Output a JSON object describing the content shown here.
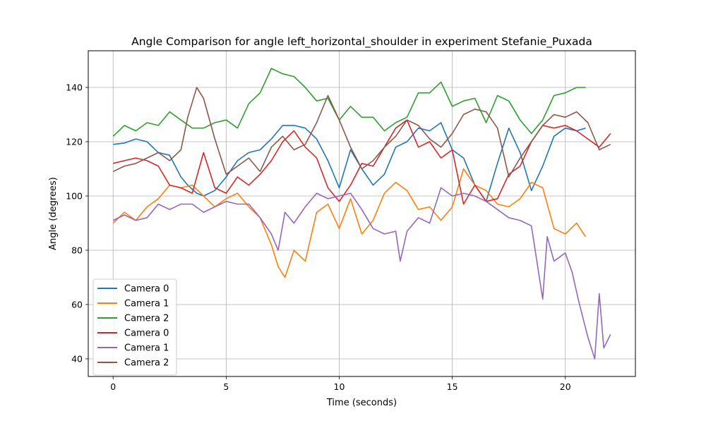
{
  "chart_data": {
    "type": "line",
    "title": "Angle Comparison for angle left_horizontal_shoulder in experiment Stefanie_Puxada",
    "xlabel": "Time (seconds)",
    "ylabel": "Angle (degrees)",
    "xlim": [
      -1.1,
      23.1
    ],
    "ylim": [
      33.5,
      153.5
    ],
    "xticks": [
      0,
      5,
      10,
      15,
      20
    ],
    "yticks": [
      40,
      60,
      80,
      100,
      120,
      140
    ],
    "grid": true,
    "legend": "lower-left",
    "series": [
      {
        "name": "Camera 0",
        "color": "#1f77b4",
        "x": [
          0,
          0.5,
          1,
          1.5,
          2,
          2.5,
          3,
          3.3,
          3.7,
          4,
          4.5,
          5,
          5.5,
          6,
          6.5,
          7,
          7.5,
          8,
          8.5,
          9,
          9.5,
          10,
          10.5,
          11,
          11.5,
          12,
          12.5,
          13,
          13.5,
          14,
          14.5,
          15,
          15.5,
          16,
          16.5,
          17,
          17.5,
          18,
          18.5,
          19,
          19.5,
          20,
          20.5,
          20.9
        ],
        "y": [
          119,
          119.5,
          121,
          120,
          116,
          115,
          107,
          104,
          101,
          100,
          102,
          107,
          113,
          116,
          117,
          121,
          126,
          126,
          125,
          121,
          113,
          103,
          117,
          110,
          104,
          108,
          118,
          120,
          125,
          124,
          127,
          117,
          114,
          104,
          98,
          112,
          125,
          116,
          102,
          111,
          122,
          125,
          124,
          125
        ]
      },
      {
        "name": "Camera 1",
        "color": "#ff7f0e",
        "x": [
          0,
          0.5,
          1,
          1.5,
          2,
          2.5,
          3,
          3.5,
          4,
          4.5,
          5,
          5.5,
          6,
          6.5,
          7,
          7.3,
          7.6,
          8,
          8.5,
          9,
          9.5,
          10,
          10.5,
          11,
          11.5,
          12,
          12.5,
          13,
          13.5,
          14,
          14.5,
          15,
          15.5,
          16,
          16.5,
          17,
          17.5,
          18,
          18.5,
          19,
          19.5,
          20,
          20.5,
          20.9
        ],
        "y": [
          90,
          94,
          91,
          96,
          99,
          104,
          103,
          104,
          100,
          96,
          99,
          101,
          96,
          92,
          82,
          74,
          70,
          80,
          76,
          94,
          97,
          88,
          99,
          86,
          91,
          101,
          105,
          102,
          95,
          96,
          91,
          96,
          110,
          104,
          102,
          97,
          96,
          99,
          105,
          103,
          88,
          86,
          90,
          85
        ]
      },
      {
        "name": "Camera 2",
        "color": "#2ca02c",
        "x": [
          0,
          0.5,
          1,
          1.5,
          2,
          2.5,
          3,
          3.5,
          4,
          4.5,
          5,
          5.5,
          6,
          6.5,
          7,
          7.5,
          8,
          8.5,
          9,
          9.5,
          10,
          10.5,
          11,
          11.5,
          12,
          12.5,
          13,
          13.5,
          14,
          14.5,
          15,
          15.5,
          16,
          16.5,
          17,
          17.5,
          18,
          18.5,
          19,
          19.5,
          20,
          20.5,
          20.9
        ],
        "y": [
          122,
          126,
          124,
          127,
          126,
          131,
          128,
          125,
          125,
          127,
          128,
          125,
          134,
          138,
          147,
          145,
          144,
          140,
          135,
          136,
          128,
          133,
          129,
          129,
          124,
          127,
          129,
          138,
          138,
          142,
          133,
          135,
          136,
          127,
          137,
          135,
          128,
          123,
          128,
          137,
          138,
          140,
          140
        ]
      },
      {
        "name": "Camera 0",
        "color": "#d62728",
        "x": [
          0,
          0.5,
          1,
          1.5,
          2,
          2.5,
          3,
          3.5,
          4,
          4.5,
          5,
          5.5,
          6,
          6.5,
          7,
          7.5,
          8,
          8.5,
          9,
          9.5,
          10,
          10.5,
          11,
          11.5,
          12,
          12.5,
          13,
          13.5,
          14,
          14.5,
          15,
          15.5,
          16,
          16.5,
          17,
          17.5,
          18,
          18.5,
          19,
          19.5,
          20,
          20.5,
          21,
          21.5,
          22
        ],
        "y": [
          112,
          113,
          114,
          113,
          111,
          104,
          103,
          101,
          116,
          103,
          101,
          107,
          104,
          108,
          113,
          120,
          124,
          118,
          114,
          103,
          98,
          104,
          112,
          111,
          118,
          125,
          128,
          118,
          120,
          114,
          117,
          97,
          104,
          98,
          99,
          108,
          111,
          120,
          126,
          125,
          126,
          124,
          121,
          118,
          123
        ]
      },
      {
        "name": "Camera 1",
        "color": "#9467bd",
        "x": [
          0,
          0.5,
          1,
          1.5,
          2,
          2.5,
          3,
          3.5,
          4,
          4.5,
          5,
          5.5,
          6,
          6.5,
          7,
          7.3,
          7.6,
          8,
          8.5,
          9,
          9.5,
          10,
          10.5,
          11,
          11.5,
          12,
          12.5,
          12.7,
          13,
          13.5,
          14,
          14.5,
          15,
          15.5,
          16,
          16.5,
          17,
          17.5,
          18,
          18.5,
          19,
          19.2,
          19.5,
          20,
          20.3,
          20.6,
          21,
          21.3,
          21.5,
          21.7,
          22
        ],
        "y": [
          91,
          93,
          91,
          92,
          97,
          95,
          97,
          97,
          94,
          96,
          98,
          97,
          97,
          92,
          86,
          80,
          94,
          90,
          96,
          101,
          99,
          100,
          101,
          95,
          88,
          86,
          87,
          76,
          87,
          92,
          90,
          103,
          100,
          101,
          100,
          98,
          95,
          92,
          91,
          89,
          62,
          85,
          76,
          79,
          72,
          61,
          48,
          40,
          64,
          44,
          49
        ]
      },
      {
        "name": "Camera 2",
        "color": "#8c564b",
        "x": [
          0,
          0.5,
          1,
          1.5,
          2,
          2.5,
          3,
          3.3,
          3.7,
          4,
          4.5,
          5,
          5.5,
          6,
          6.5,
          7,
          7.5,
          8,
          8.5,
          9,
          9.5,
          10,
          10.5,
          11,
          11.5,
          12,
          12.5,
          13,
          13.5,
          14,
          14.5,
          15,
          15.5,
          16,
          16.5,
          17,
          17.5,
          18,
          18.5,
          19,
          19.5,
          20,
          20.5,
          21,
          21.5,
          22
        ],
        "y": [
          109,
          111,
          112,
          114,
          116,
          113,
          117,
          129,
          140,
          136,
          121,
          108,
          111,
          114,
          109,
          118,
          122,
          117,
          119,
          127,
          137,
          128,
          118,
          110,
          113,
          118,
          122,
          128,
          126,
          121,
          118,
          123,
          130,
          132,
          131,
          125,
          107,
          114,
          120,
          126,
          130,
          129,
          131,
          127,
          117,
          119
        ]
      }
    ]
  }
}
